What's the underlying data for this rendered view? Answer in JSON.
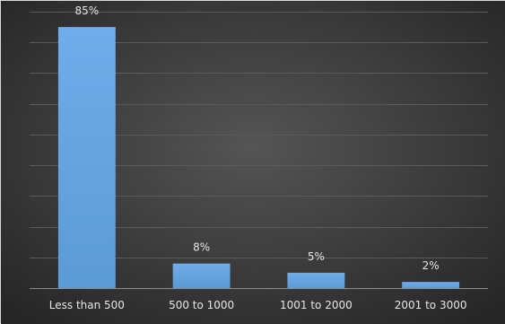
{
  "chart_data": {
    "type": "bar",
    "title": "",
    "xlabel": "",
    "ylabel": "",
    "categories": [
      "Less than 500",
      "500 to 1000",
      "1001 to 2000",
      "2001 to 3000"
    ],
    "values": [
      85,
      8,
      5,
      2
    ],
    "data_labels": [
      "85%",
      "8%",
      "5%",
      "2%"
    ],
    "ylim": [
      0,
      90
    ],
    "gridlines": true,
    "legend": "none",
    "colors": {
      "background_center": "#555555",
      "background_edge": "#262626",
      "bar": "#5b9bd5",
      "bar_top": "#6fadea",
      "gridline": "#5a5a5a",
      "axis": "#8c8c8c",
      "text": "#e6e6e6"
    }
  }
}
